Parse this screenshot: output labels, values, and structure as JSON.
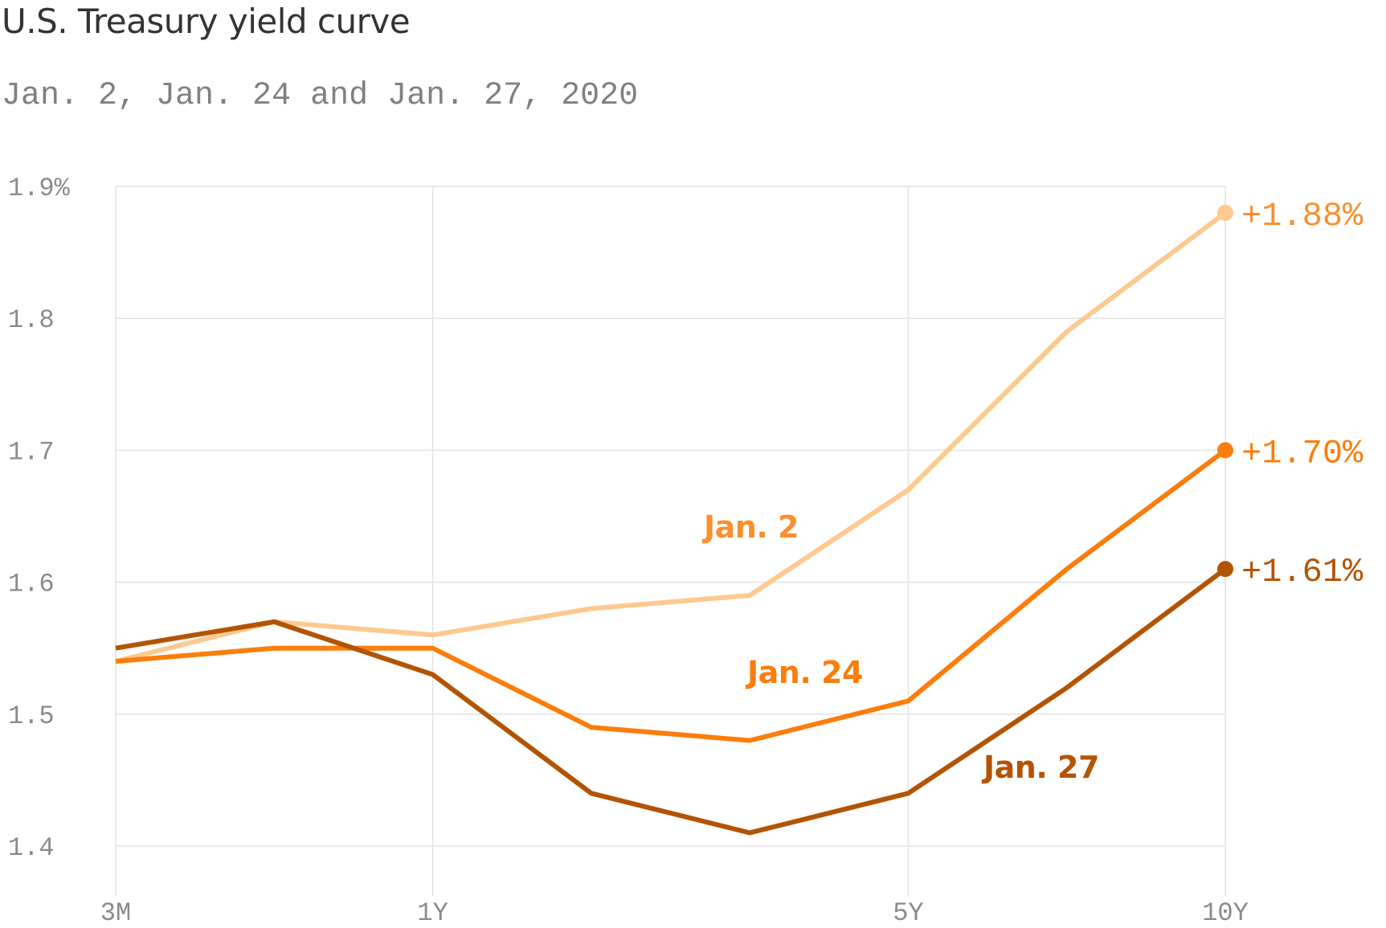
{
  "chart_data": {
    "type": "line",
    "title": "U.S. Treasury yield curve",
    "subtitle": "Jan. 2, Jan. 24 and Jan. 27, 2020",
    "x": [
      0,
      1,
      2,
      3,
      4,
      5,
      6,
      7
    ],
    "x_tick_positions": [
      0,
      2,
      5,
      7
    ],
    "x_tick_labels": [
      "3M",
      "1Y",
      "5Y",
      "10Y"
    ],
    "y_ticks": [
      1.4,
      1.5,
      1.6,
      1.7,
      1.8,
      1.9
    ],
    "y_tick_labels": [
      "1.4",
      "1.5",
      "1.6",
      "1.7",
      "1.8",
      "1.9%"
    ],
    "ylim": [
      1.4,
      1.9
    ],
    "grid": true,
    "series": [
      {
        "name": "Jan. 2",
        "color": "#fcc98f",
        "label_color": "#f98f2e",
        "values": [
          1.54,
          1.57,
          1.56,
          1.58,
          1.59,
          1.67,
          1.79,
          1.88
        ],
        "end_label": "+1.88%"
      },
      {
        "name": "Jan. 24",
        "color": "#fc7d0b",
        "label_color": "#fc7d0b",
        "values": [
          1.54,
          1.55,
          1.55,
          1.49,
          1.48,
          1.51,
          1.61,
          1.7
        ],
        "end_label": "+1.70%"
      },
      {
        "name": "Jan. 27",
        "color": "#b35404",
        "label_color": "#b35404",
        "values": [
          1.55,
          1.57,
          1.53,
          1.44,
          1.41,
          1.44,
          1.52,
          1.61
        ],
        "end_label": "+1.61%"
      }
    ]
  }
}
